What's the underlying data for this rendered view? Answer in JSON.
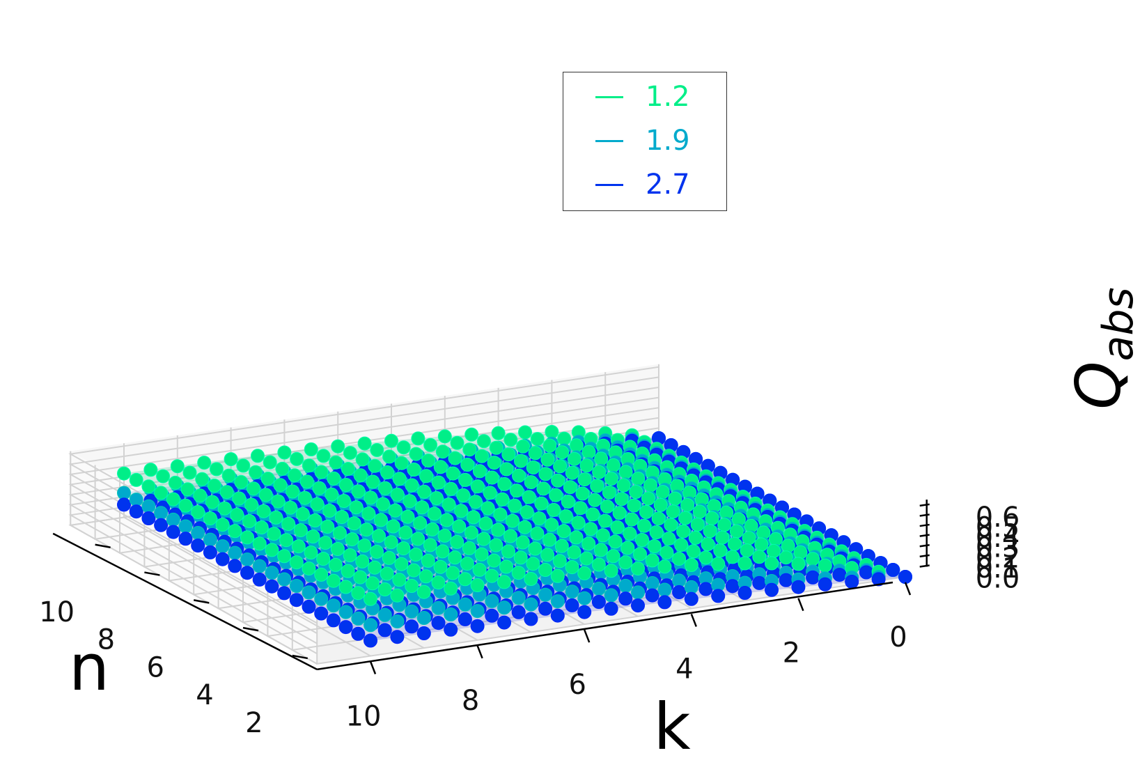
{
  "chart_data": {
    "type": "scatter",
    "projection": "3d",
    "title": "",
    "xlabel": "k",
    "ylabel": "n",
    "zlabel": "Q_abs",
    "zlabel_display": {
      "base": "Q",
      "subscript": "abs"
    },
    "xlim": [
      0,
      11
    ],
    "ylim": [
      1,
      11
    ],
    "zlim": [
      0,
      0.65
    ],
    "x_ticks": [
      "0",
      "2",
      "4",
      "6",
      "8",
      "10"
    ],
    "y_ticks": [
      "2",
      "4",
      "6",
      "8",
      "10"
    ],
    "z_ticks": [
      "0.0",
      "0.1",
      "0.2",
      "0.3",
      "0.4",
      "0.5",
      "0.6"
    ],
    "grid": true,
    "legend": {
      "placement": "top-center"
    },
    "k_grid": [
      0,
      0.5,
      1,
      1.5,
      2,
      2.5,
      3,
      3.5,
      4,
      4.5,
      5,
      5.5,
      6,
      6.5,
      7,
      7.5,
      8,
      8.5,
      9,
      9.5,
      10
    ],
    "n_grid": [
      1,
      1.5,
      2,
      2.5,
      3,
      3.5,
      4,
      4.5,
      5,
      5.5,
      6,
      6.5,
      7,
      7.5,
      8,
      8.5,
      9,
      9.5,
      10,
      10.5,
      11
    ],
    "series": [
      {
        "name": "1.2",
        "color": "#00ee88",
        "edge": "#00ffaa",
        "model": {
          "amplitude": 0.58,
          "k_scale": 3.0,
          "n_scale": 14.0
        },
        "surface_color": "#2fc58e"
      },
      {
        "name": "1.9",
        "color": "#00aacc",
        "edge": "#00c6b8",
        "model": {
          "amplitude": 0.33,
          "k_scale": 4.0,
          "n_scale": 16.0
        },
        "surface_color": "#5fa3d6"
      },
      {
        "name": "2.7",
        "color": "#0033ee",
        "edge": "#0022ff",
        "model": {
          "amplitude": 0.18,
          "k_scale": 5.5,
          "n_scale": 20.0
        },
        "surface_color": "#3f4fd8"
      }
    ]
  }
}
